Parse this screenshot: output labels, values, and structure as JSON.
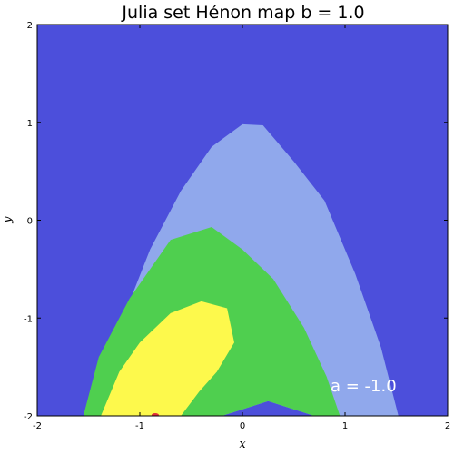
{
  "chart_data": {
    "type": "heatmap",
    "title": "Julia set Hénon map b = 1.0",
    "xlabel": "x",
    "ylabel": "y",
    "xlim": [
      -2,
      2
    ],
    "ylim": [
      -2,
      2
    ],
    "xticks": [
      "-2",
      "-1",
      "0",
      "1",
      "2"
    ],
    "yticks": [
      "-2",
      "-1",
      "0",
      "1",
      "2"
    ],
    "annotation": "a = -1.0",
    "grid": false,
    "colors": {
      "background": "#4c4fdb",
      "level1": "#90a8ec",
      "level2": "#4fcf4f",
      "level3": "#fdf94c",
      "marker": "#e0303a"
    },
    "regions": [
      {
        "level": 1,
        "boundary": [
          [
            -1.42,
            -2
          ],
          [
            -1.2,
            -1.1
          ],
          [
            -0.9,
            -0.3
          ],
          [
            -0.6,
            0.3
          ],
          [
            -0.3,
            0.75
          ],
          [
            0,
            0.98
          ],
          [
            0.2,
            0.97
          ],
          [
            0.5,
            0.6
          ],
          [
            0.8,
            0.2
          ],
          [
            1.1,
            -0.55
          ],
          [
            1.35,
            -1.3
          ],
          [
            1.52,
            -2
          ],
          [
            0.7,
            -2
          ],
          [
            0.25,
            -1.85
          ],
          [
            -0.2,
            -2
          ]
        ]
      },
      {
        "level": 2,
        "boundary": [
          [
            -1.55,
            -2
          ],
          [
            -1.4,
            -1.4
          ],
          [
            -1.1,
            -0.8
          ],
          [
            -0.7,
            -0.2
          ],
          [
            -0.3,
            -0.07
          ],
          [
            0,
            -0.3
          ],
          [
            0.3,
            -0.6
          ],
          [
            0.6,
            -1.1
          ],
          [
            0.82,
            -1.6
          ],
          [
            0.95,
            -2
          ],
          [
            0.7,
            -2
          ],
          [
            0.25,
            -1.85
          ],
          [
            -0.2,
            -2
          ]
        ]
      },
      {
        "level": 3,
        "boundary": [
          [
            -1.38,
            -2
          ],
          [
            -1.2,
            -1.55
          ],
          [
            -1,
            -1.25
          ],
          [
            -0.7,
            -0.95
          ],
          [
            -0.4,
            -0.83
          ],
          [
            -0.15,
            -0.9
          ],
          [
            -0.08,
            -1.25
          ],
          [
            -0.25,
            -1.55
          ],
          [
            -0.42,
            -1.75
          ],
          [
            -0.6,
            -2
          ]
        ]
      }
    ],
    "markers": [
      {
        "x": -0.85,
        "y": -2
      }
    ]
  }
}
